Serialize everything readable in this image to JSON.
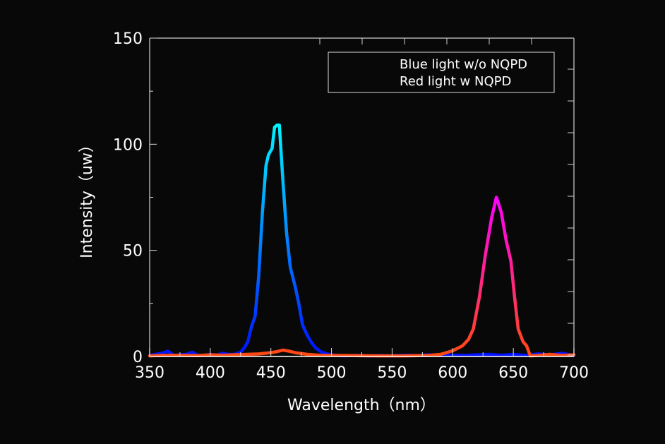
{
  "chart_data": {
    "type": "line",
    "xlabel": "Wavelength（nm）",
    "ylabel": "Intensity（uw）",
    "xlim": [
      350,
      700
    ],
    "ylim": [
      0,
      150
    ],
    "xticks": [
      350,
      400,
      450,
      500,
      550,
      600,
      650,
      700
    ],
    "yticks": [
      0,
      50,
      100,
      150
    ],
    "grid": false,
    "legend_position": "top-right",
    "series": [
      {
        "name": "Blue light w/o NQPD",
        "colors": [
          "#00f4ff",
          "#0010ff"
        ],
        "x": [
          350,
          355,
          360,
          365,
          370,
          375,
          380,
          385,
          390,
          395,
          400,
          405,
          410,
          415,
          420,
          425,
          428,
          431,
          434,
          437,
          440,
          443,
          446,
          448,
          451,
          453,
          455,
          457,
          460,
          463,
          466,
          470,
          473,
          476,
          480,
          483,
          487,
          492,
          500,
          510,
          520,
          530,
          540,
          550,
          560,
          570,
          580,
          590,
          600,
          610,
          620,
          630,
          640,
          650,
          660,
          670,
          680,
          690,
          695,
          700
        ],
        "y": [
          0.5,
          1,
          1.5,
          2.5,
          0.5,
          0.8,
          1,
          2,
          0.5,
          0.5,
          1,
          0.5,
          1.5,
          1,
          1,
          2,
          4,
          7,
          14,
          19,
          38,
          68,
          90,
          95,
          98,
          108,
          109,
          109,
          82,
          58,
          42,
          33,
          25,
          15,
          10,
          7,
          4,
          2,
          0.7,
          0.3,
          0.5,
          0.3,
          0.4,
          0.3,
          0.6,
          0.4,
          0.8,
          0.5,
          0.6,
          0.5,
          0.8,
          1,
          0.6,
          1,
          0.5,
          1.2,
          0.8,
          1.5,
          1,
          0.5
        ]
      },
      {
        "name": "Red light w NQPD",
        "colors": [
          "#ff00ff",
          "#ff4a10"
        ],
        "x": [
          350,
          360,
          370,
          380,
          390,
          400,
          410,
          420,
          430,
          440,
          450,
          455,
          460,
          465,
          470,
          480,
          490,
          500,
          520,
          540,
          560,
          580,
          590,
          600,
          608,
          613,
          617,
          622,
          627,
          632,
          636,
          640,
          644,
          648,
          651,
          654,
          658,
          661,
          664,
          670,
          680,
          690,
          700
        ],
        "y": [
          0.3,
          0.5,
          0.6,
          0.5,
          0.4,
          0.8,
          0.6,
          0.8,
          1,
          1.2,
          1.8,
          2.3,
          3,
          2.5,
          1.8,
          1,
          0.6,
          0.5,
          0.4,
          0.3,
          0.3,
          0.5,
          1,
          2.7,
          5,
          8,
          13,
          28,
          48,
          65,
          75,
          68,
          55,
          45,
          28,
          13,
          7,
          5,
          0.3,
          0.5,
          1,
          0.5,
          0.8
        ]
      }
    ]
  }
}
